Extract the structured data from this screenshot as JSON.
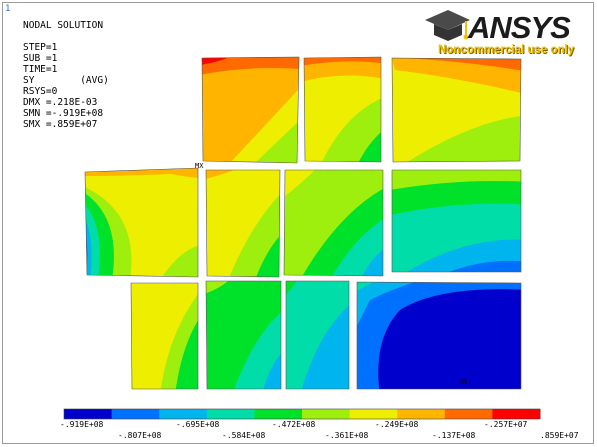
{
  "window": {
    "number": "1"
  },
  "info": {
    "title": "NODAL SOLUTION",
    "lines": [
      "STEP=1",
      "SUB =1",
      "TIME=1",
      "SY        (AVG)",
      "RSYS=0",
      "DMX =.218E-03",
      "SMN =-.919E+08",
      "SMX =.859E+07"
    ]
  },
  "logo": {
    "brand": "ANSYS",
    "note": "Noncommercial use only"
  },
  "markers": {
    "max": "MX",
    "min": "MN"
  },
  "legend": {
    "colors": [
      "#0000cc",
      "#0070ff",
      "#00b4ee",
      "#00dda8",
      "#00e12a",
      "#9eef0e",
      "#eeee00",
      "#ffb400",
      "#ff6a00",
      "#ff0000"
    ],
    "top_labels": [
      "-.919E+08",
      "-.695E+08",
      "-.472E+08",
      "-.249E+08",
      "-.257E+07"
    ],
    "bottom_labels": [
      "-.807E+08",
      "-.584E+08",
      "-.361E+08",
      "-.137E+08",
      ".859E+07"
    ]
  },
  "contour": {
    "palette": {
      "blue": "#0000cc",
      "ltblue": "#0070ff",
      "cyan": "#00b4ee",
      "teal": "#00dda8",
      "green": "#00e12a",
      "lime": "#9eef0e",
      "yellow": "#eeee00",
      "orange": "#ffb400",
      "dorange": "#ff6a00",
      "red": "#ff0000"
    }
  }
}
